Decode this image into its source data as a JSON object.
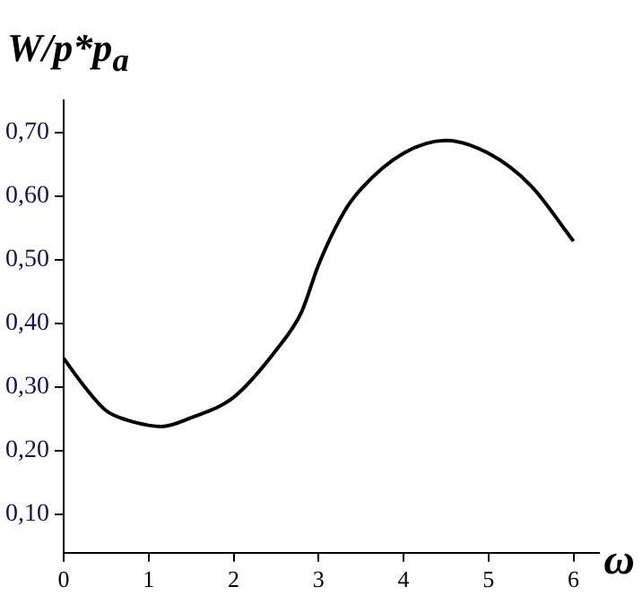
{
  "chart_data": {
    "type": "line",
    "xlabel": "ω",
    "ylabel": "W/p*p$_{a}$",
    "series": [
      {
        "color": "#000000",
        "x": [
          0,
          0.25,
          0.5,
          0.75,
          1,
          1.15,
          1.5,
          2,
          2.5,
          2.8,
          3,
          3.3,
          3.5,
          4,
          4.5,
          5,
          5.5,
          6
        ],
        "values": [
          0.345,
          0.3,
          0.263,
          0.248,
          0.24,
          0.238,
          0.252,
          0.284,
          0.358,
          0.418,
          0.492,
          0.575,
          0.611,
          0.667,
          0.687,
          0.667,
          0.616,
          0.529
        ]
      }
    ],
    "xlim": [
      0,
      6.3
    ],
    "xticks": [
      0,
      1,
      2,
      3,
      4,
      5,
      6
    ],
    "ylim": [
      0.04,
      0.75
    ],
    "yticks": [
      {
        "value": 0.1,
        "label": "0,10"
      },
      {
        "value": 0.2,
        "label": "0,20"
      },
      {
        "value": 0.3,
        "label": "0,30"
      },
      {
        "value": 0.4,
        "label": "0,40"
      },
      {
        "value": 0.5,
        "label": "0,50"
      },
      {
        "value": 0.6,
        "label": "0,60"
      },
      {
        "value": 0.7,
        "label": "0,70"
      }
    ],
    "grid": false,
    "legend": false,
    "marker": "none",
    "line_style": "solid"
  }
}
